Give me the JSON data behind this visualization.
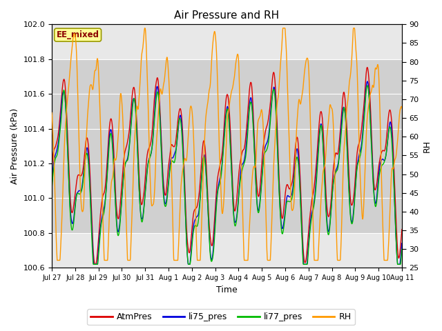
{
  "title": "Air Pressure and RH",
  "xlabel": "Time",
  "ylabel_left": "Air Pressure (kPa)",
  "ylabel_right": "RH",
  "annotation": "EE_mixed",
  "ylim_left": [
    100.6,
    102.0
  ],
  "ylim_right": [
    25,
    90
  ],
  "yticks_left": [
    100.6,
    100.8,
    101.0,
    101.2,
    101.4,
    101.6,
    101.8,
    102.0
  ],
  "yticks_right": [
    25,
    30,
    35,
    40,
    45,
    50,
    55,
    60,
    65,
    70,
    75,
    80,
    85,
    90
  ],
  "xtick_labels": [
    "Jul 27",
    "Jul 28",
    "Jul 29",
    "Jul 30",
    "Jul 31",
    "Aug 1",
    "Aug 2",
    "Aug 3",
    "Aug 4",
    "Aug 5",
    "Aug 6",
    "Aug 7",
    "Aug 8",
    "Aug 9",
    "Aug 10Aug 11"
  ],
  "num_points": 1440,
  "band_ylim": [
    100.8,
    101.8
  ],
  "legend_labels": [
    "AtmPres",
    "li75_pres",
    "li77_pres",
    "RH"
  ],
  "legend_colors": [
    "#dd0000",
    "#0000dd",
    "#00bb00",
    "#ff9900"
  ],
  "plot_bg_color": "#e8e8e8",
  "band_color": "#d0d0d0",
  "fig_bg_color": "#ffffff",
  "seed": 42,
  "num_days": 15,
  "figsize": [
    6.4,
    4.8
  ],
  "dpi": 100
}
